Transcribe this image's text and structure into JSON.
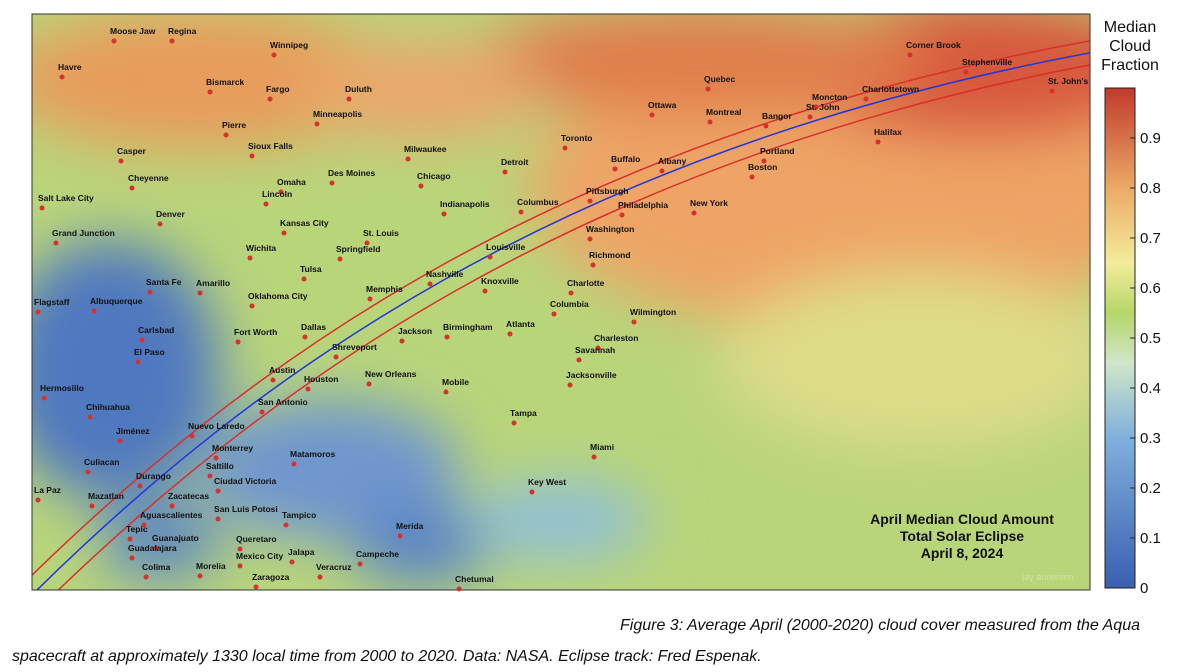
{
  "map": {
    "cities": [
      "Moose Jaw",
      "Regina",
      "Winnipeg",
      "Havre",
      "Bismarck",
      "Fargo",
      "Duluth",
      "Minneapolis",
      "Pierre",
      "Sioux Falls",
      "Casper",
      "Cheyenne",
      "Omaha",
      "Lincoln",
      "Des Moines",
      "Salt Lake City",
      "Denver",
      "Grand Junction",
      "Kansas City",
      "St. Louis",
      "Springfield",
      "Wichita",
      "Tulsa",
      "Santa Fe",
      "Amarillo",
      "Oklahoma City",
      "Flagstaff",
      "Albuquerque",
      "Memphis",
      "Carlsbad",
      "Fort Worth",
      "Dallas",
      "Shreveport",
      "El Paso",
      "Austin",
      "Houston",
      "San Antonio",
      "Hermosillo",
      "Chihuahua",
      "Jiménez",
      "Nuevo Laredo",
      "Monterrey",
      "Saltillo",
      "Culiacan",
      "Durango",
      "Ciudad Victoria",
      "Matamoros",
      "La Paz",
      "Mazatlan",
      "Zacatecas",
      "San Luis Potosi",
      "Aguascalientes",
      "Tampico",
      "Tepic",
      "Guanajuato",
      "Queretaro",
      "Guadalajara",
      "Mexico City",
      "Jalapa",
      "Colima",
      "Morelia",
      "Veracruz",
      "Zaragoza",
      "Campeche",
      "Merida",
      "Chetumal",
      "Milwaukee",
      "Chicago",
      "Detroit",
      "Toronto",
      "Indianapolis",
      "Columbus",
      "Pittsburgh",
      "Louisville",
      "Nashville",
      "Knoxville",
      "Charlotte",
      "Columbia",
      "Atlanta",
      "Birmingham",
      "Jackson",
      "Wilmington",
      "Charleston",
      "Savannah",
      "New Orleans",
      "Mobile",
      "Jacksonville",
      "Tampa",
      "Miami",
      "Key West",
      "Buffalo",
      "Albany",
      "Ottawa",
      "Montreal",
      "Quebec",
      "Philadelphia",
      "New York",
      "Washington",
      "Richmond",
      "Portland",
      "Boston",
      "Bangor",
      "Moncton",
      "St. John",
      "Charlottetown",
      "Halifax",
      "Corner Brook",
      "Stephenville",
      "St. John's"
    ],
    "annotation": [
      "April Median Cloud Amount",
      "Total Solar Eclipse",
      "April 8, 2024"
    ],
    "credit": "jay anderson"
  },
  "colorbar": {
    "title": [
      "Median",
      "Cloud",
      "Fraction"
    ],
    "range": [
      0,
      1
    ],
    "ticks": [
      0,
      0.1,
      0.2,
      0.3,
      0.4,
      0.5,
      0.6,
      0.7,
      0.8,
      0.9
    ]
  },
  "caption": "Figure 3: Average April (2000-2020) cloud  cover measured from the Aqua spacecraft at approximately 1330 local time from 2000 to 2020. Data: NASA. Eclipse track: Fred Espenak."
}
